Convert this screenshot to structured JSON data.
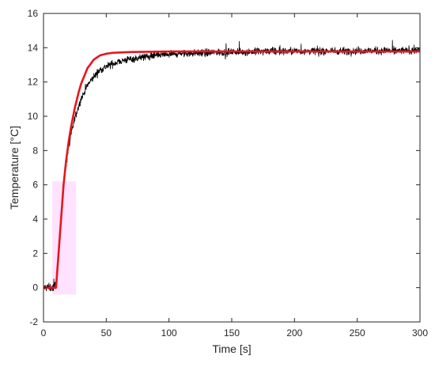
{
  "chart_data": {
    "type": "line",
    "title": "",
    "xlabel": "Time [s]",
    "ylabel": "Temperature [°C]",
    "xlim": [
      0,
      300
    ],
    "ylim": [
      -2,
      16
    ],
    "x_ticks": [
      0,
      50,
      100,
      150,
      200,
      250,
      300
    ],
    "y_ticks": [
      -2,
      0,
      2,
      4,
      6,
      8,
      10,
      12,
      14,
      16
    ],
    "grid": false,
    "legend": "none",
    "series": [
      {
        "color": "#000000",
        "style": "noisy-measurement",
        "x": [
          0,
          8,
          10,
          12,
          14,
          16,
          18,
          20,
          25,
          30,
          35,
          40,
          45,
          50,
          60,
          70,
          80,
          90,
          100,
          110,
          125,
          150,
          175,
          200,
          225,
          250,
          275,
          300
        ],
        "y": [
          0,
          0,
          0.2,
          2.1,
          4.2,
          6.0,
          7.2,
          8.2,
          9.9,
          11.0,
          11.8,
          12.3,
          12.7,
          12.9,
          13.2,
          13.35,
          13.45,
          13.55,
          13.6,
          13.65,
          13.7,
          13.75,
          13.78,
          13.8,
          13.8,
          13.82,
          13.82,
          13.85
        ]
      },
      {
        "color": "#e8151c",
        "style": "model-fit",
        "x": [
          0,
          10,
          12,
          14,
          16,
          18,
          20,
          22,
          25,
          28,
          30,
          35,
          40,
          45,
          50,
          55,
          60,
          70,
          80,
          100,
          150,
          200,
          250,
          300
        ],
        "y": [
          0,
          0,
          2.0,
          4.0,
          6.0,
          7.4,
          8.5,
          9.4,
          10.5,
          11.4,
          11.9,
          12.8,
          13.3,
          13.55,
          13.65,
          13.7,
          13.72,
          13.75,
          13.76,
          13.78,
          13.78,
          13.78,
          13.78,
          13.78
        ]
      }
    ],
    "annotations": [
      {
        "type": "highlight-band",
        "color": "#ffd6ff",
        "x0": 7,
        "x1": 26,
        "y0": -0.4,
        "y1": 6.2
      }
    ]
  }
}
